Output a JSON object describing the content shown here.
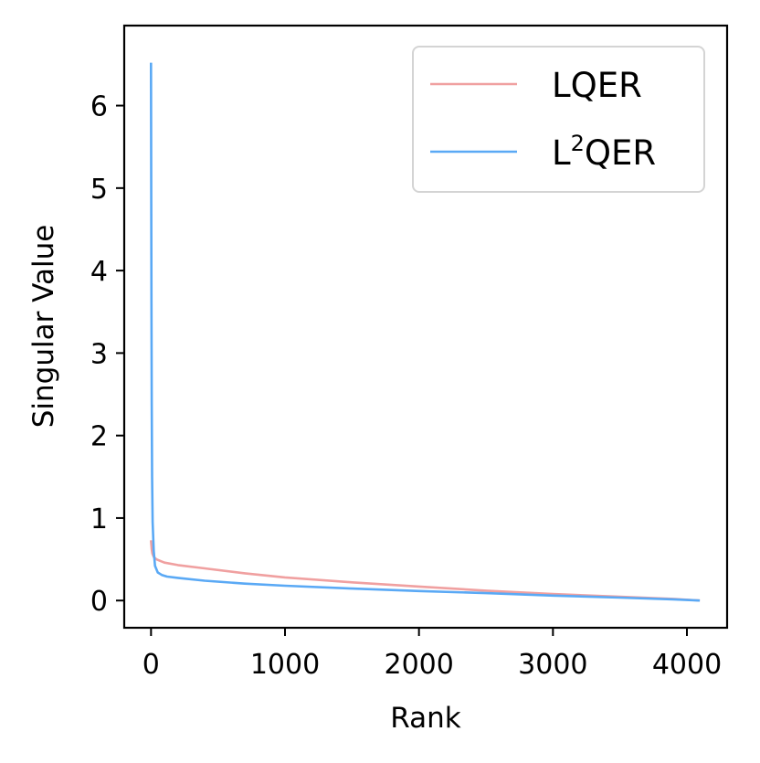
{
  "chart_data": {
    "type": "line",
    "title": "",
    "xlabel": "Rank",
    "ylabel": "Singular Value",
    "xlim": [
      -200,
      4300
    ],
    "ylim": [
      -0.33,
      6.97
    ],
    "xticks": [
      0,
      1000,
      2000,
      3000,
      4000
    ],
    "xtick_labels": [
      "0",
      "1000",
      "2000",
      "3000",
      "4000"
    ],
    "yticks": [
      0,
      1,
      2,
      3,
      4,
      5,
      6
    ],
    "ytick_labels": [
      "0",
      "1",
      "2",
      "3",
      "4",
      "5",
      "6"
    ],
    "grid": false,
    "legend_position": "top-right",
    "series": [
      {
        "name": "LQER",
        "color": "#f0a0a0",
        "x": [
          0,
          5,
          10,
          20,
          40,
          70,
          100,
          200,
          400,
          700,
          1000,
          1500,
          2000,
          2500,
          3000,
          3500,
          3900,
          4096
        ],
        "y": [
          0.73,
          0.62,
          0.57,
          0.53,
          0.5,
          0.48,
          0.46,
          0.43,
          0.39,
          0.33,
          0.28,
          0.22,
          0.17,
          0.12,
          0.08,
          0.045,
          0.02,
          0.0
        ]
      },
      {
        "name": "L²QER",
        "name_base": "L",
        "name_sup": "2",
        "name_rest": "QER",
        "color": "#5aa9f5",
        "x": [
          0,
          1,
          3,
          5,
          8,
          12,
          20,
          30,
          50,
          80,
          120,
          200,
          400,
          700,
          1000,
          1500,
          2000,
          2500,
          3000,
          3500,
          3900,
          4096
        ],
        "y": [
          6.52,
          5.3,
          3.6,
          2.4,
          1.5,
          0.95,
          0.6,
          0.42,
          0.34,
          0.31,
          0.29,
          0.275,
          0.24,
          0.205,
          0.18,
          0.145,
          0.115,
          0.09,
          0.06,
          0.035,
          0.015,
          0.0
        ]
      }
    ]
  }
}
